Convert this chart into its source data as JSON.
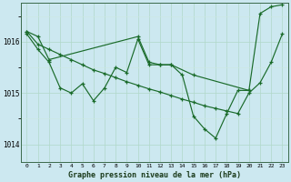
{
  "xlabel": "Graphe pression niveau de la mer (hPa)",
  "bg_color": "#cce8f0",
  "grid_color_major": "#b0d8c8",
  "grid_color_minor": "#cce8e0",
  "line_color": "#1a6b2a",
  "ylim": [
    1013.65,
    1016.75
  ],
  "yticks": [
    1014,
    1015,
    1016
  ],
  "xlim": [
    -0.5,
    23.5
  ],
  "xticks": [
    0,
    1,
    2,
    3,
    4,
    5,
    6,
    7,
    8,
    9,
    10,
    11,
    12,
    13,
    14,
    15,
    16,
    17,
    18,
    19,
    20,
    21,
    22,
    23
  ],
  "series": [
    {
      "x": [
        0,
        1,
        2,
        3,
        4,
        5,
        6,
        7,
        8,
        9,
        10,
        11,
        12,
        13,
        14,
        15,
        16,
        17,
        18,
        19,
        20,
        21,
        22,
        23
      ],
      "y": [
        1016.2,
        1015.95,
        1015.85,
        1015.75,
        1015.65,
        1015.55,
        1015.45,
        1015.38,
        1015.3,
        1015.22,
        1015.15,
        1015.08,
        1015.02,
        1014.95,
        1014.88,
        1014.82,
        1014.75,
        1014.7,
        1014.65,
        1014.6,
        1015.0,
        1015.2,
        1015.6,
        1016.15
      ]
    },
    {
      "x": [
        0,
        1,
        2,
        3,
        4,
        5,
        6,
        7,
        8,
        9,
        10,
        11,
        12,
        13,
        14,
        15,
        16,
        17,
        18,
        19,
        20,
        21,
        22,
        23
      ],
      "y": [
        1016.15,
        1015.85,
        1015.6,
        1015.1,
        1015.0,
        1015.18,
        1014.85,
        1015.1,
        1015.5,
        1015.4,
        1016.05,
        1015.55,
        1015.55,
        1015.55,
        1015.35,
        1014.55,
        1014.3,
        1014.12,
        1014.6,
        1015.05,
        1015.05,
        1016.55,
        1016.68,
        1016.72
      ]
    },
    {
      "x": [
        0,
        1,
        2,
        10,
        11,
        12,
        13,
        15,
        20
      ],
      "y": [
        1016.2,
        1016.1,
        1015.65,
        1016.1,
        1015.6,
        1015.55,
        1015.55,
        1015.35,
        1015.05
      ]
    }
  ]
}
